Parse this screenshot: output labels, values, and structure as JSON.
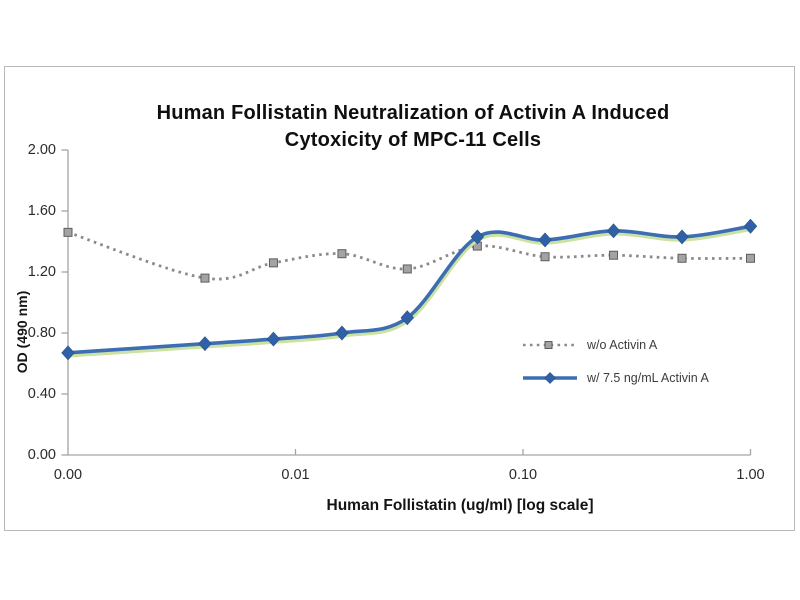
{
  "chart_data": {
    "type": "line",
    "title": "Human Follistatin Neutralization of Activin A Induced Cytoxicity of MPC-11 Cells",
    "title_lines": [
      "Human Follistatin Neutralization of Activin A Induced",
      "Cytoxicity of MPC-11 Cells"
    ],
    "xlabel": "Human Follistatin (ug/ml) [log scale]",
    "ylabel": "OD (490 nm)",
    "x_scale": "log (zero plotted at axis origin)",
    "x": [
      0,
      0.004,
      0.008,
      0.016,
      0.031,
      0.063,
      0.125,
      0.25,
      0.5,
      1.0
    ],
    "x_tick_values": [
      0,
      0.01,
      0.1,
      1.0
    ],
    "x_tick_labels": [
      "0.00",
      "0.01",
      "0.10",
      "1.00"
    ],
    "y_tick_values": [
      0,
      0.4,
      0.8,
      1.2,
      1.6,
      2.0
    ],
    "y_tick_labels": [
      "0.00",
      "0.40",
      "0.80",
      "1.20",
      "1.60",
      "2.00"
    ],
    "ylim": [
      0,
      2.0
    ],
    "grid": "off",
    "legend_position": "middle-right inside plot",
    "series": [
      {
        "name": "w/o Activin A",
        "style": "dotted",
        "marker": "square",
        "line_color": "#8a8a8a",
        "marker_fill": "#a3a3a3",
        "marker_stroke": "#5e5e5e",
        "values": [
          1.46,
          1.16,
          1.26,
          1.32,
          1.22,
          1.37,
          1.3,
          1.31,
          1.29,
          1.29
        ]
      },
      {
        "name": "w/ 7.5 ng/mL Activin A",
        "style": "solid smoothed",
        "marker": "diamond",
        "line_color": "#3d6eb3",
        "marker_fill": "#3061a8",
        "glow_color": "#cbe2a0",
        "values": [
          0.67,
          0.73,
          0.76,
          0.8,
          0.9,
          1.43,
          1.41,
          1.47,
          1.43,
          1.5
        ]
      }
    ],
    "colors": {
      "axis": "#a2a6aa",
      "panel_border": "#b5b9bc",
      "text": "#141414"
    }
  }
}
